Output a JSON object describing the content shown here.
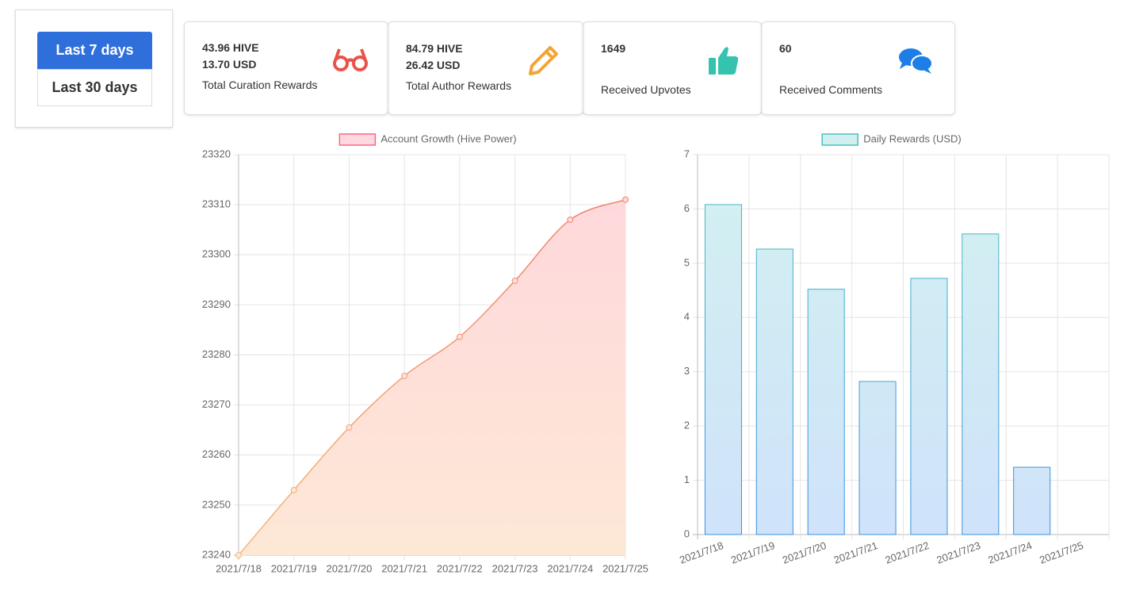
{
  "buttons": [
    "Last 7 days",
    "Last 30 days"
  ],
  "cards": [
    {
      "lines": [
        "43.96 HIVE",
        "13.70 USD"
      ],
      "label": "Total Curation Rewards"
    },
    {
      "lines": [
        "84.79 HIVE",
        "26.42 USD"
      ],
      "label": "Total Author Rewards"
    },
    {
      "lines": [
        "1649"
      ],
      "label": "Received Upvotes"
    },
    {
      "lines": [
        "60"
      ],
      "label": "Received Comments"
    }
  ],
  "chart_data": [
    {
      "type": "line",
      "categories": [
        "2021/7/18",
        "2021/7/19",
        "2021/7/20",
        "2021/7/21",
        "2021/7/22",
        "2021/7/23",
        "2021/7/24",
        "2021/7/25"
      ],
      "series": [
        {
          "name": "Account Growth (Hive Power)",
          "color": "#ff6384",
          "values": [
            23240,
            23253,
            23265.5,
            23275.8,
            23283.6,
            23294.8,
            23307,
            23311
          ]
        }
      ],
      "ylim": [
        23240,
        23320
      ],
      "yticks": [
        23240,
        23250,
        23260,
        23270,
        23280,
        23290,
        23300,
        23310,
        23320
      ],
      "grid": true
    },
    {
      "type": "bar",
      "categories": [
        "2021/7/18",
        "2021/7/19",
        "2021/7/20",
        "2021/7/21",
        "2021/7/22",
        "2021/7/23",
        "2021/7/24",
        "2021/7/25"
      ],
      "series": [
        {
          "name": "Daily Rewards (USD)",
          "color": "#4bc0c0",
          "values": [
            6.08,
            5.26,
            4.52,
            2.82,
            4.72,
            5.54,
            1.24,
            0
          ]
        }
      ],
      "ylim": [
        0,
        7
      ],
      "yticks": [
        0,
        1,
        2,
        3,
        4,
        5,
        6,
        7
      ],
      "grid": true
    }
  ]
}
